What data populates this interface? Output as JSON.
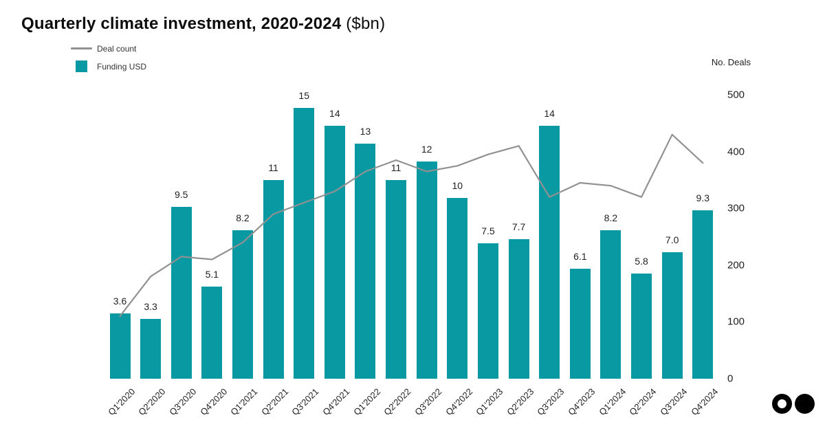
{
  "title": {
    "main": "Quarterly climate investment, 2020-2024",
    "suffix": " ($bn)"
  },
  "legend": {
    "deal_count": "Deal count",
    "funding": "Funding USD"
  },
  "colors": {
    "bar": "#0999a3",
    "line": "#919191",
    "title_text": "#0d0d0d",
    "axis_text": "#1f1f1f",
    "legend_text": "#333333",
    "logo": "#000000"
  },
  "icons": {
    "logo_left": "ring-circle-icon",
    "logo_right": "solid-circle-icon"
  },
  "chart_data": {
    "type": "bar",
    "title": "Quarterly climate investment, 2020-2024 ($bn)",
    "categories": [
      "Q1'2020",
      "Q2'2020",
      "Q3'2020",
      "Q4'2020",
      "Q1'2021",
      "Q2'2021",
      "Q3'2021",
      "Q4'2021",
      "Q1'2022",
      "Q2'2022",
      "Q3'2022",
      "Q4'2022",
      "Q1'2023",
      "Q2'2023",
      "Q3'2023",
      "Q4'2023",
      "Q1'2024",
      "Q2'2024",
      "Q3'2024",
      "Q4'2024"
    ],
    "series": [
      {
        "name": "Funding USD",
        "type": "bar",
        "unit": "$bn",
        "values": [
          3.6,
          3.3,
          9.5,
          5.1,
          8.2,
          11,
          15,
          14,
          13,
          11,
          12,
          10,
          7.5,
          7.7,
          14,
          6.1,
          8.2,
          5.8,
          7.0,
          9.3
        ],
        "labels": [
          "3.6",
          "3.3",
          "9.5",
          "5.1",
          "8.2",
          "11",
          "15",
          "14",
          "13",
          "11",
          "12",
          "10",
          "7.5",
          "7.7",
          "14",
          "6.1",
          "8.2",
          "5.8",
          "7.0",
          "9.3"
        ]
      },
      {
        "name": "Deal count",
        "type": "line",
        "axis": "right",
        "values": [
          110,
          180,
          215,
          210,
          240,
          290,
          310,
          330,
          365,
          385,
          365,
          375,
          395,
          410,
          320,
          345,
          340,
          320,
          430,
          380
        ]
      }
    ],
    "right_axis": {
      "label": "No. Deals",
      "ticks": [
        0,
        100,
        200,
        300,
        400,
        500
      ],
      "range": [
        0,
        500
      ]
    },
    "left_axis": {
      "visible": false,
      "implied_range": [
        0,
        15
      ]
    },
    "grid": false,
    "legend_position": "top-left"
  }
}
